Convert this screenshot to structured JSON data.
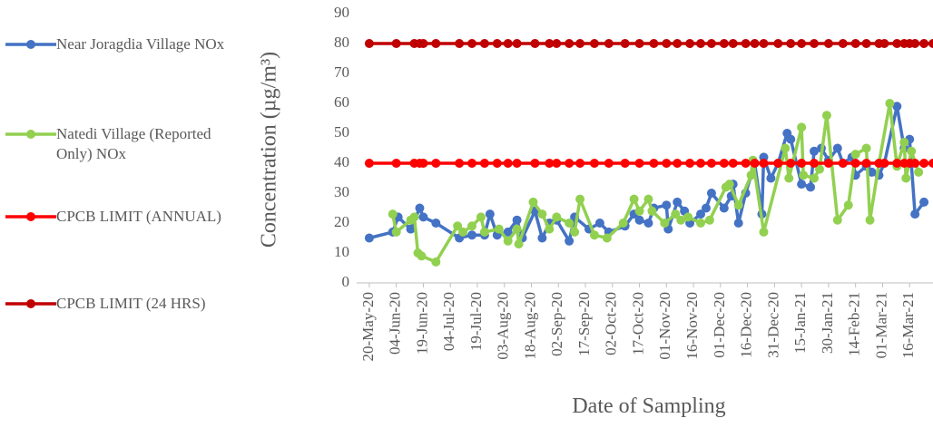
{
  "chart_data": {
    "type": "line",
    "xlabel": "Date of Sampling",
    "ylabel": "Concentration (µg/m³)",
    "xlim": [
      "13-May-20",
      "29-Mar-21"
    ],
    "xticks": [
      "20-May-20",
      "04-Jun-20",
      "19-Jun-20",
      "04-Jul-20",
      "19-Jul-20",
      "03-Aug-20",
      "18-Aug-20",
      "02-Sep-20",
      "17-Sep-20",
      "02-Oct-20",
      "17-Oct-20",
      "01-Nov-20",
      "16-Nov-20",
      "01-Dec-20",
      "16-Dec-20",
      "31-Dec-20",
      "15-Jan-21",
      "30-Jan-21",
      "14-Feb-21",
      "01-Mar-21",
      "16-Mar-21"
    ],
    "ylim": [
      0,
      90
    ],
    "yticks": [
      0,
      10,
      20,
      30,
      40,
      50,
      60,
      70,
      80,
      90
    ],
    "grid": false,
    "legend": "left",
    "series": [
      {
        "name": "Near Joragdia Village NOx",
        "color": "#4472c4",
        "x": [
          "20-May-20",
          "02-Jun-20",
          "05-Jun-20",
          "12-Jun-20",
          "17-Jun-20",
          "19-Jun-20",
          "26-Jun-20",
          "09-Jul-20",
          "16-Jul-20",
          "23-Jul-20",
          "26-Jul-20",
          "30-Jul-20",
          "05-Aug-20",
          "10-Aug-20",
          "13-Aug-20",
          "20-Aug-20",
          "24-Aug-20",
          "28-Aug-20",
          "01-Sep-20",
          "08-Sep-20",
          "11-Sep-20",
          "19-Sep-20",
          "25-Sep-20",
          "30-Sep-20",
          "09-Oct-20",
          "14-Oct-20",
          "17-Oct-20",
          "22-Oct-20",
          "25-Oct-20",
          "01-Nov-20",
          "02-Nov-20",
          "07-Nov-20",
          "11-Nov-20",
          "14-Nov-20",
          "20-Nov-20",
          "23-Nov-20",
          "26-Nov-20",
          "03-Dec-20",
          "07-Dec-20",
          "08-Dec-20",
          "11-Dec-20",
          "15-Dec-20",
          "20-Dec-20",
          "24-Dec-20",
          "25-Dec-20",
          "29-Dec-20",
          "02-Jan-21",
          "07-Jan-21",
          "09-Jan-21",
          "15-Jan-21",
          "20-Jan-21",
          "22-Jan-21",
          "26-Jan-21",
          "30-Jan-21",
          "04-Feb-21",
          "07-Feb-21",
          "12-Feb-21",
          "14-Feb-21",
          "20-Feb-21",
          "23-Feb-21",
          "27-Feb-21",
          "02-Mar-21",
          "09-Mar-21",
          "13-Mar-21",
          "16-Mar-21",
          "19-Mar-21",
          "24-Mar-21"
        ],
        "values": [
          15,
          17,
          22,
          18,
          25,
          22,
          20,
          15,
          16,
          16,
          23,
          16,
          17,
          21,
          15,
          24,
          15,
          20,
          21,
          14,
          22,
          18,
          20,
          17,
          19,
          23,
          21,
          20,
          25,
          26,
          18,
          27,
          24,
          20,
          23,
          25,
          30,
          25,
          29,
          33,
          20,
          30,
          40,
          23,
          42,
          35,
          40,
          50,
          48,
          33,
          32,
          44,
          45,
          41,
          45,
          40,
          42,
          36,
          39,
          37,
          36,
          40,
          59,
          45,
          48,
          23,
          27
        ]
      },
      {
        "name": "Natedi Village (Reported Only) NOx",
        "color": "#92d050",
        "x": [
          "02-Jun-20",
          "04-Jun-20",
          "12-Jun-20",
          "14-Jun-20",
          "16-Jun-20",
          "18-Jun-20",
          "26-Jun-20",
          "08-Jul-20",
          "11-Jul-20",
          "16-Jul-20",
          "21-Jul-20",
          "23-Jul-20",
          "31-Jul-20",
          "05-Aug-20",
          "10-Aug-20",
          "11-Aug-20",
          "19-Aug-20",
          "24-Aug-20",
          "28-Aug-20",
          "01-Sep-20",
          "08-Sep-20",
          "11-Sep-20",
          "14-Sep-20",
          "22-Sep-20",
          "29-Sep-20",
          "08-Oct-20",
          "14-Oct-20",
          "17-Oct-20",
          "22-Oct-20",
          "24-Oct-20",
          "31-Oct-20",
          "06-Nov-20",
          "09-Nov-20",
          "13-Nov-20",
          "20-Nov-20",
          "25-Nov-20",
          "04-Dec-20",
          "06-Dec-20",
          "11-Dec-20",
          "18-Dec-20",
          "19-Dec-20",
          "25-Dec-20",
          "06-Jan-21",
          "08-Jan-21",
          "15-Jan-21",
          "16-Jan-21",
          "22-Jan-21",
          "25-Jan-21",
          "29-Jan-21",
          "04-Feb-21",
          "10-Feb-21",
          "14-Feb-21",
          "20-Feb-21",
          "22-Feb-21",
          "27-Feb-21",
          "05-Mar-21",
          "09-Mar-21",
          "13-Mar-21",
          "14-Mar-21",
          "17-Mar-21",
          "21-Mar-21"
        ],
        "values": [
          23,
          17,
          21,
          22,
          10,
          9,
          7,
          19,
          17,
          19,
          22,
          17,
          18,
          14,
          18,
          13,
          27,
          23,
          18,
          22,
          20,
          17,
          28,
          16,
          15,
          20,
          28,
          24,
          28,
          24,
          20,
          23,
          21,
          22,
          20,
          21,
          32,
          33,
          26,
          36,
          41,
          17,
          45,
          35,
          52,
          36,
          35,
          38,
          56,
          21,
          26,
          43,
          45,
          21,
          40,
          60,
          39,
          47,
          35,
          44,
          37
        ]
      },
      {
        "name": "CPCB LIMIT (ANNUAL)",
        "color": "#ff0000",
        "x": [
          "20-May-20",
          "04-Jun-20",
          "14-Jun-20",
          "17-Jun-20",
          "19-Jun-20",
          "26-Jun-20",
          "09-Jul-20",
          "16-Jul-20",
          "23-Jul-20",
          "30-Jul-20",
          "05-Aug-20",
          "10-Aug-20",
          "20-Aug-20",
          "28-Aug-20",
          "01-Sep-20",
          "08-Sep-20",
          "14-Sep-20",
          "22-Sep-20",
          "30-Sep-20",
          "09-Oct-20",
          "17-Oct-20",
          "25-Oct-20",
          "01-Nov-20",
          "07-Nov-20",
          "14-Nov-20",
          "20-Nov-20",
          "26-Nov-20",
          "03-Dec-20",
          "08-Dec-20",
          "15-Dec-20",
          "20-Dec-20",
          "25-Dec-20",
          "02-Jan-21",
          "09-Jan-21",
          "15-Jan-21",
          "22-Jan-21",
          "30-Jan-21",
          "07-Feb-21",
          "14-Feb-21",
          "20-Feb-21",
          "27-Feb-21",
          "02-Mar-21",
          "09-Mar-21",
          "13-Mar-21",
          "16-Mar-21",
          "19-Mar-21",
          "24-Mar-21",
          "29-Mar-21"
        ],
        "values": [
          40,
          40,
          40,
          40,
          40,
          40,
          40,
          40,
          40,
          40,
          40,
          40,
          40,
          40,
          40,
          40,
          40,
          40,
          40,
          40,
          40,
          40,
          40,
          40,
          40,
          40,
          40,
          40,
          40,
          40,
          40,
          40,
          40,
          40,
          40,
          40,
          40,
          40,
          40,
          40,
          40,
          40,
          40,
          40,
          40,
          40,
          40,
          40
        ]
      },
      {
        "name": "CPCB LIMIT (24 HRS)",
        "color": "#c00000",
        "x": [
          "20-May-20",
          "04-Jun-20",
          "14-Jun-20",
          "17-Jun-20",
          "19-Jun-20",
          "26-Jun-20",
          "09-Jul-20",
          "16-Jul-20",
          "23-Jul-20",
          "30-Jul-20",
          "05-Aug-20",
          "10-Aug-20",
          "20-Aug-20",
          "28-Aug-20",
          "01-Sep-20",
          "08-Sep-20",
          "14-Sep-20",
          "22-Sep-20",
          "30-Sep-20",
          "09-Oct-20",
          "17-Oct-20",
          "25-Oct-20",
          "01-Nov-20",
          "07-Nov-20",
          "14-Nov-20",
          "20-Nov-20",
          "26-Nov-20",
          "03-Dec-20",
          "08-Dec-20",
          "15-Dec-20",
          "20-Dec-20",
          "25-Dec-20",
          "02-Jan-21",
          "09-Jan-21",
          "15-Jan-21",
          "22-Jan-21",
          "30-Jan-21",
          "07-Feb-21",
          "14-Feb-21",
          "20-Feb-21",
          "27-Feb-21",
          "02-Mar-21",
          "09-Mar-21",
          "13-Mar-21",
          "16-Mar-21",
          "19-Mar-21",
          "24-Mar-21",
          "29-Mar-21"
        ],
        "values": [
          80,
          80,
          80,
          80,
          80,
          80,
          80,
          80,
          80,
          80,
          80,
          80,
          80,
          80,
          80,
          80,
          80,
          80,
          80,
          80,
          80,
          80,
          80,
          80,
          80,
          80,
          80,
          80,
          80,
          80,
          80,
          80,
          80,
          80,
          80,
          80,
          80,
          80,
          80,
          80,
          80,
          80,
          80,
          80,
          80,
          80,
          80,
          80
        ]
      }
    ]
  }
}
